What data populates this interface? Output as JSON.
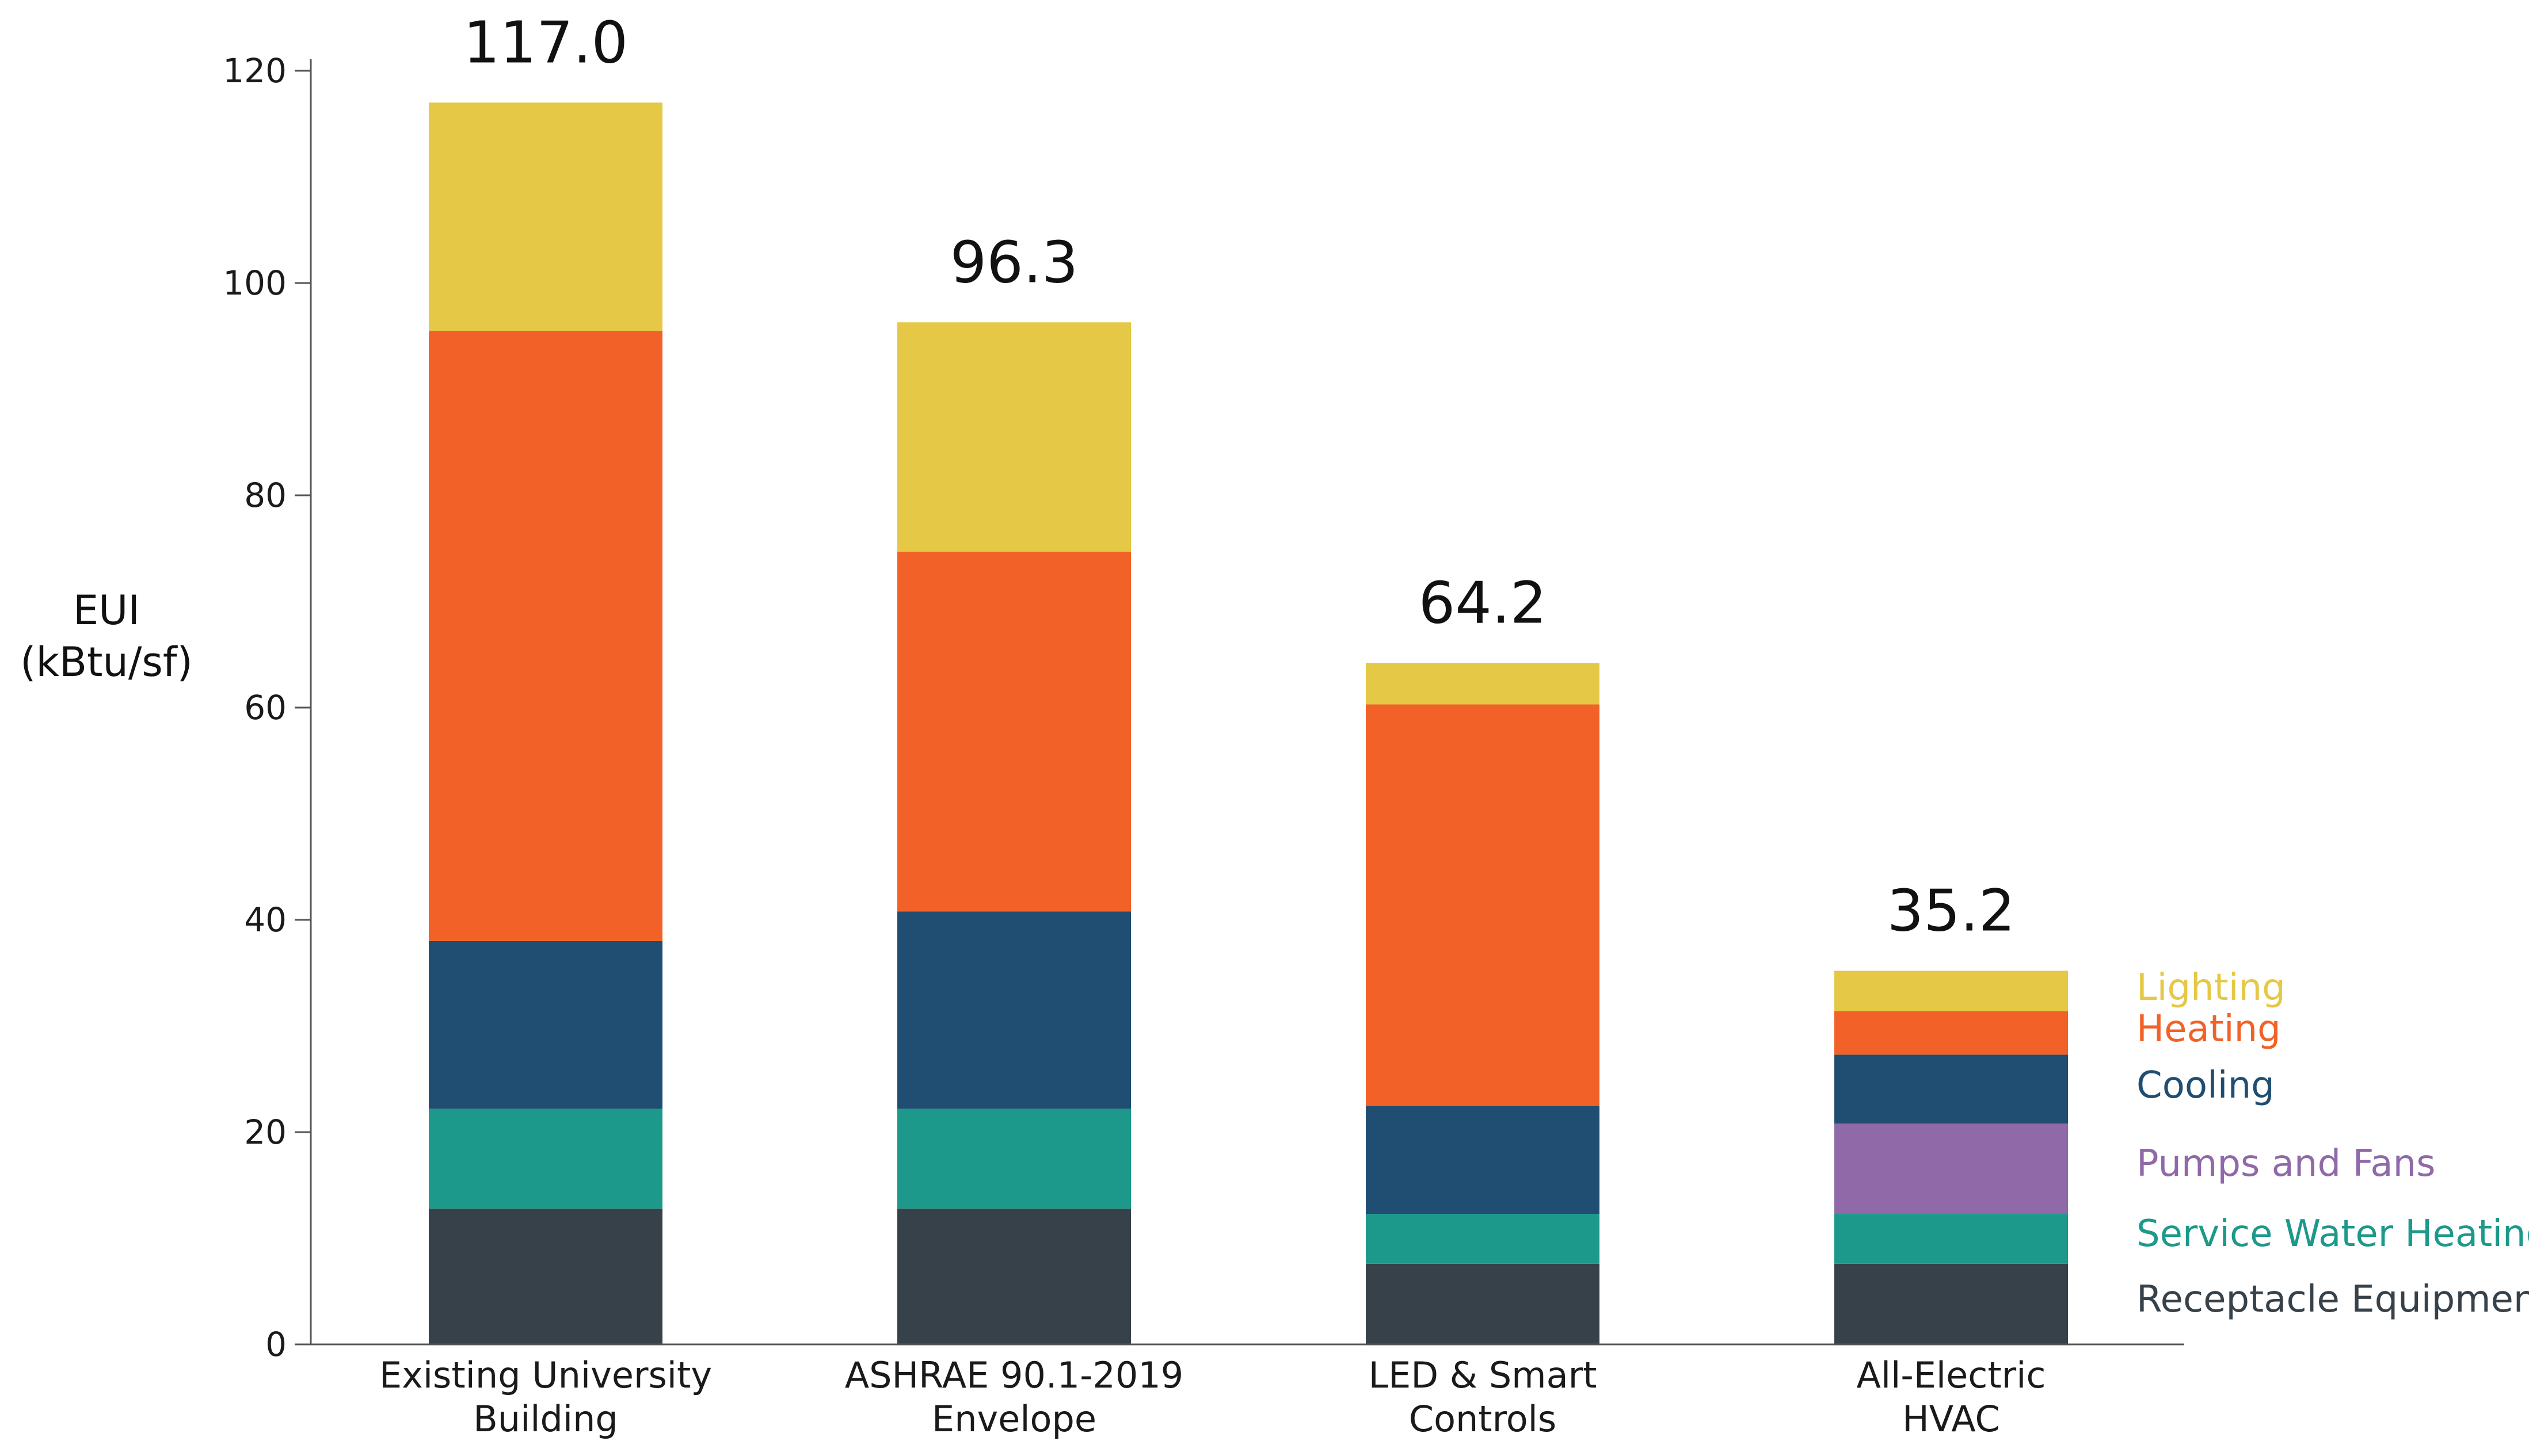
{
  "chart_data": {
    "type": "bar",
    "stacked": true,
    "title": "",
    "ylabel_lines": [
      "EUI",
      "(kBtu/sf)"
    ],
    "ylim": [
      0,
      120
    ],
    "yticks": [
      0,
      20,
      40,
      60,
      80,
      100,
      120
    ],
    "grid": false,
    "legend_position": "right, beside last bar",
    "categories": [
      [
        "Existing University",
        "Building"
      ],
      [
        "ASHRAE 90.1-2019",
        "Envelope"
      ],
      [
        "LED & Smart",
        "Controls"
      ],
      [
        "All-Electric",
        "HVAC"
      ]
    ],
    "totals": [
      "117.0",
      "96.3",
      "64.2",
      "35.2"
    ],
    "series": [
      {
        "name": "Receptacle Equipment",
        "color": "#37414a",
        "values": [
          12.8,
          12.8,
          7.6,
          7.6
        ]
      },
      {
        "name": "Service Water Heating",
        "color": "#1c998a",
        "values": [
          9.4,
          9.4,
          4.7,
          4.7
        ]
      },
      {
        "name": "Pumps and Fans",
        "color": "#9069a8",
        "values": [
          0,
          0,
          0,
          8.5
        ]
      },
      {
        "name": "Cooling",
        "color": "#1f4e72",
        "values": [
          15.8,
          18.6,
          10.2,
          6.5
        ]
      },
      {
        "name": "Heating",
        "color": "#f26228",
        "values": [
          57.5,
          33.9,
          37.8,
          4.1
        ]
      },
      {
        "name": "Lighting",
        "color": "#e5c845",
        "values": [
          21.5,
          21.6,
          3.9,
          3.8
        ]
      }
    ]
  }
}
